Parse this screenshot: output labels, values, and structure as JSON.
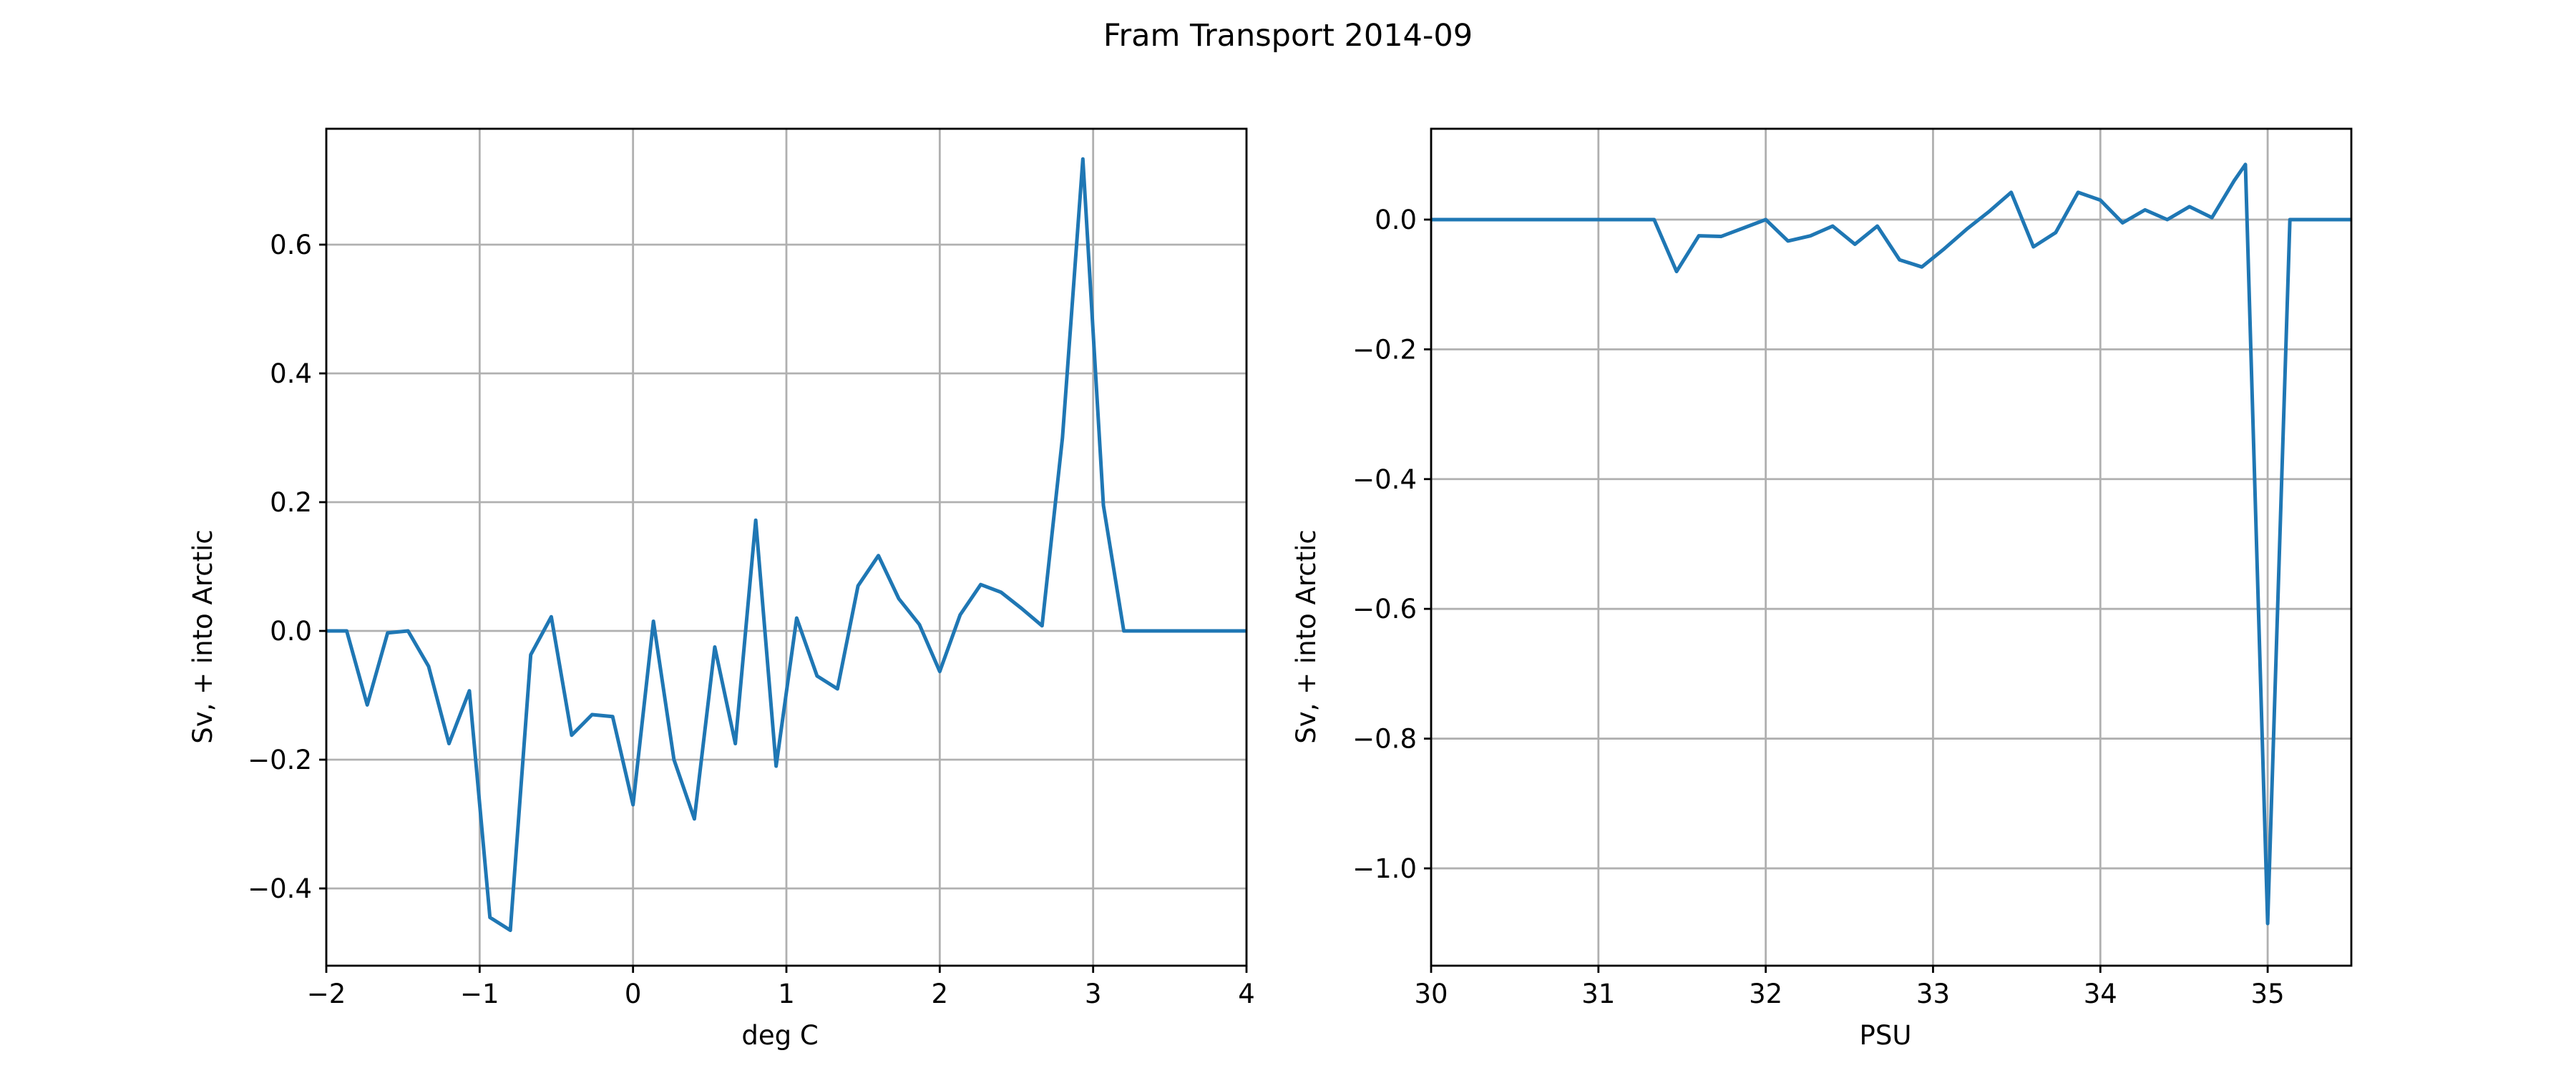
{
  "figure": {
    "suptitle": "Fram Transport 2014-09"
  },
  "chart_data": [
    {
      "type": "line",
      "xlabel": "deg C",
      "ylabel": "Sv, + into Arctic",
      "xlim": [
        -2,
        4
      ],
      "ylim": [
        -0.52,
        0.78
      ],
      "xticks": [
        -2,
        -1,
        0,
        1,
        2,
        3,
        4
      ],
      "xtick_labels": [
        "−2",
        "−1",
        "0",
        "1",
        "2",
        "3",
        "4"
      ],
      "yticks": [
        -0.4,
        -0.2,
        0.0,
        0.2,
        0.4,
        0.6
      ],
      "ytick_labels": [
        "−0.4",
        "−0.2",
        "0.0",
        "0.2",
        "0.4",
        "0.6"
      ],
      "grid": true,
      "series": [
        {
          "color": "#1f77b4",
          "x": [
            -2.0,
            -1.867,
            -1.733,
            -1.6,
            -1.467,
            -1.333,
            -1.2,
            -1.067,
            -0.933,
            -0.8,
            -0.667,
            -0.533,
            -0.4,
            -0.267,
            -0.133,
            0.0,
            0.133,
            0.267,
            0.4,
            0.533,
            0.667,
            0.8,
            0.933,
            1.067,
            1.2,
            1.333,
            1.467,
            1.6,
            1.733,
            1.867,
            2.0,
            2.133,
            2.267,
            2.4,
            2.533,
            2.667,
            2.8,
            2.933,
            3.067,
            3.2,
            3.333,
            3.467,
            3.6,
            3.733,
            3.867,
            4.0
          ],
          "y": [
            0.0,
            0.0,
            -0.115,
            -0.003,
            0.0,
            -0.055,
            -0.175,
            -0.093,
            -0.445,
            -0.465,
            -0.037,
            0.022,
            -0.162,
            -0.13,
            -0.133,
            -0.27,
            0.015,
            -0.2,
            -0.292,
            -0.025,
            -0.175,
            0.172,
            -0.21,
            0.02,
            -0.07,
            -0.09,
            0.07,
            0.117,
            0.05,
            0.01,
            -0.063,
            0.025,
            0.072,
            0.06,
            0.035,
            0.008,
            0.3,
            0.733,
            0.195,
            0.0,
            0.0,
            0.0,
            0.0,
            0.0,
            0.0,
            0.0
          ]
        }
      ]
    },
    {
      "type": "line",
      "xlabel": "PSU",
      "ylabel": "Sv, + into Arctic",
      "xlim": [
        30,
        35.5
      ],
      "ylim": [
        -1.15,
        0.14
      ],
      "xticks": [
        30,
        31,
        32,
        33,
        34,
        35
      ],
      "xtick_labels": [
        "30",
        "31",
        "32",
        "33",
        "34",
        "35"
      ],
      "yticks": [
        -1.0,
        -0.8,
        -0.6,
        -0.4,
        -0.2,
        0.0
      ],
      "ytick_labels": [
        "−1.0",
        "−0.8",
        "−0.6",
        "−0.4",
        "−0.2",
        "0.0"
      ],
      "grid": true,
      "series": [
        {
          "color": "#1f77b4",
          "x": [
            30.0,
            30.5,
            31.0,
            31.333,
            31.467,
            31.6,
            31.733,
            31.867,
            32.0,
            32.133,
            32.267,
            32.4,
            32.533,
            32.667,
            32.8,
            32.933,
            33.067,
            33.2,
            33.333,
            33.467,
            33.6,
            33.733,
            33.867,
            34.0,
            34.133,
            34.267,
            34.4,
            34.533,
            34.667,
            34.8,
            34.867,
            35.0,
            35.133,
            35.267,
            35.5
          ],
          "y": [
            0.0,
            0.0,
            0.0,
            0.0,
            -0.08,
            -0.025,
            -0.026,
            -0.013,
            0.0,
            -0.033,
            -0.025,
            -0.01,
            -0.038,
            -0.01,
            -0.062,
            -0.073,
            -0.045,
            -0.015,
            0.012,
            0.042,
            -0.042,
            -0.02,
            0.042,
            0.03,
            -0.005,
            0.015,
            0.0,
            0.02,
            0.003,
            0.06,
            0.085,
            -1.085,
            0.0,
            0.0,
            0.0
          ]
        }
      ]
    }
  ]
}
